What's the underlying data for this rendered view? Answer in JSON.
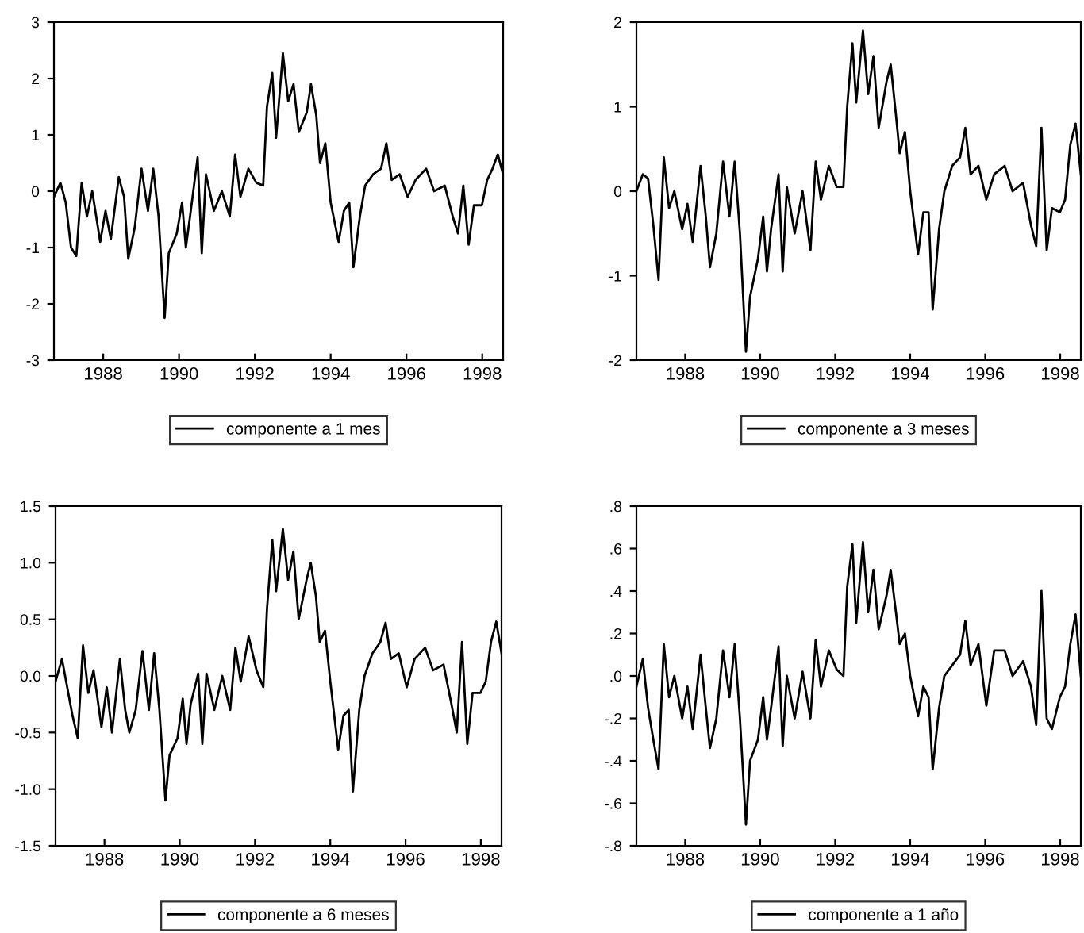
{
  "chart_data": [
    {
      "type": "line",
      "x": [
        1986.7,
        1986.87,
        1987.01,
        1987.15,
        1987.29,
        1987.43,
        1987.57,
        1987.71,
        1987.92,
        1988.06,
        1988.2,
        1988.41,
        1988.55,
        1988.66,
        1988.83,
        1989.01,
        1989.18,
        1989.32,
        1989.46,
        1989.62,
        1989.73,
        1989.94,
        1990.08,
        1990.18,
        1990.29,
        1990.49,
        1990.6,
        1990.71,
        1990.92,
        1991.13,
        1991.34,
        1991.48,
        1991.62,
        1991.83,
        1992.04,
        1992.22,
        1992.32,
        1992.46,
        1992.56,
        1992.74,
        1992.88,
        1993.02,
        1993.16,
        1993.37,
        1993.48,
        1993.62,
        1993.72,
        1993.86,
        1994.0,
        1994.21,
        1994.35,
        1994.49,
        1994.6,
        1994.77,
        1994.91,
        1995.12,
        1995.33,
        1995.47,
        1995.61,
        1995.82,
        1996.03,
        1996.24,
        1996.52,
        1996.73,
        1997.01,
        1997.22,
        1997.36,
        1997.5,
        1997.64,
        1997.78,
        1997.99,
        1998.13,
        1998.27,
        1998.41,
        1998.55
      ],
      "series": [
        {
          "name": "componente a 1 mes",
          "color": "#000000",
          "values": [
            -0.1,
            0.15,
            -0.2,
            -1.0,
            -1.15,
            0.15,
            -0.45,
            0.0,
            -0.9,
            -0.35,
            -0.85,
            0.25,
            -0.1,
            -1.2,
            -0.65,
            0.4,
            -0.35,
            0.4,
            -0.45,
            -2.25,
            -1.1,
            -0.75,
            -0.2,
            -1.0,
            -0.45,
            0.6,
            -1.1,
            0.3,
            -0.35,
            0.0,
            -0.45,
            0.65,
            -0.1,
            0.4,
            0.15,
            0.1,
            1.5,
            2.1,
            0.95,
            2.45,
            1.6,
            1.9,
            1.05,
            1.4,
            1.9,
            1.35,
            0.5,
            0.85,
            -0.2,
            -0.9,
            -0.35,
            -0.2,
            -1.35,
            -0.45,
            0.1,
            0.3,
            0.4,
            0.85,
            0.2,
            0.3,
            -0.1,
            0.2,
            0.4,
            0.0,
            0.1,
            -0.45,
            -0.75,
            0.1,
            -0.95,
            -0.25,
            -0.25,
            0.2,
            0.4,
            0.65,
            0.3
          ]
        }
      ],
      "xlim": [
        1986.7,
        1998.55
      ],
      "xticks": [
        1988,
        1990,
        1992,
        1994,
        1996,
        1998
      ],
      "ylim": [
        -3,
        3
      ],
      "yticks": [
        -3,
        -2,
        -1,
        0,
        1,
        2,
        3
      ],
      "grid": false,
      "legend": "bottom"
    },
    {
      "type": "line",
      "x": [
        1986.7,
        1986.87,
        1987.01,
        1987.15,
        1987.29,
        1987.43,
        1987.57,
        1987.71,
        1987.92,
        1988.06,
        1988.2,
        1988.41,
        1988.55,
        1988.66,
        1988.83,
        1989.01,
        1989.18,
        1989.32,
        1989.46,
        1989.62,
        1989.73,
        1989.94,
        1990.08,
        1990.18,
        1990.29,
        1990.49,
        1990.6,
        1990.71,
        1990.92,
        1991.13,
        1991.34,
        1991.48,
        1991.62,
        1991.83,
        1992.04,
        1992.22,
        1992.32,
        1992.46,
        1992.56,
        1992.74,
        1992.88,
        1993.02,
        1993.16,
        1993.37,
        1993.48,
        1993.62,
        1993.72,
        1993.86,
        1994.0,
        1994.21,
        1994.35,
        1994.49,
        1994.6,
        1994.77,
        1994.91,
        1995.12,
        1995.33,
        1995.47,
        1995.61,
        1995.82,
        1996.03,
        1996.24,
        1996.52,
        1996.73,
        1997.01,
        1997.22,
        1997.36,
        1997.5,
        1997.64,
        1997.78,
        1997.99,
        1998.13,
        1998.27,
        1998.41,
        1998.55
      ],
      "series": [
        {
          "name": "componente a 3 meses",
          "color": "#000000",
          "values": [
            0.0,
            0.2,
            0.15,
            -0.4,
            -1.05,
            0.4,
            -0.2,
            0.0,
            -0.45,
            -0.15,
            -0.6,
            0.3,
            -0.3,
            -0.9,
            -0.5,
            0.35,
            -0.3,
            0.35,
            -0.5,
            -1.9,
            -1.25,
            -0.8,
            -0.3,
            -0.95,
            -0.45,
            0.2,
            -0.95,
            0.05,
            -0.5,
            0.0,
            -0.7,
            0.35,
            -0.1,
            0.3,
            0.05,
            0.05,
            1.0,
            1.75,
            1.05,
            1.9,
            1.15,
            1.6,
            0.75,
            1.3,
            1.5,
            0.9,
            0.45,
            0.7,
            0.0,
            -0.75,
            -0.25,
            -0.25,
            -1.4,
            -0.45,
            0.0,
            0.3,
            0.4,
            0.75,
            0.2,
            0.3,
            -0.1,
            0.2,
            0.3,
            0.0,
            0.1,
            -0.4,
            -0.65,
            0.75,
            -0.7,
            -0.2,
            -0.25,
            -0.1,
            0.55,
            0.8,
            0.2
          ]
        }
      ],
      "xlim": [
        1986.7,
        1998.55
      ],
      "xticks": [
        1988,
        1990,
        1992,
        1994,
        1996,
        1998
      ],
      "ylim": [
        -2,
        2
      ],
      "yticks": [
        -2,
        -1,
        0,
        1,
        2
      ],
      "grid": false,
      "legend": "bottom"
    },
    {
      "type": "line",
      "x": [
        1986.7,
        1986.87,
        1987.01,
        1987.15,
        1987.29,
        1987.43,
        1987.57,
        1987.71,
        1987.92,
        1988.06,
        1988.2,
        1988.41,
        1988.55,
        1988.66,
        1988.83,
        1989.01,
        1989.18,
        1989.32,
        1989.46,
        1989.62,
        1989.73,
        1989.94,
        1990.08,
        1990.18,
        1990.29,
        1990.49,
        1990.6,
        1990.71,
        1990.92,
        1991.13,
        1991.34,
        1991.48,
        1991.62,
        1991.83,
        1992.04,
        1992.22,
        1992.32,
        1992.46,
        1992.56,
        1992.74,
        1992.88,
        1993.02,
        1993.16,
        1993.37,
        1993.48,
        1993.62,
        1993.72,
        1993.86,
        1994.0,
        1994.21,
        1994.35,
        1994.49,
        1994.6,
        1994.77,
        1994.91,
        1995.12,
        1995.33,
        1995.47,
        1995.61,
        1995.82,
        1996.03,
        1996.24,
        1996.52,
        1996.73,
        1997.01,
        1997.22,
        1997.36,
        1997.5,
        1997.64,
        1997.78,
        1997.99,
        1998.13,
        1998.27,
        1998.41,
        1998.55
      ],
      "series": [
        {
          "name": "componente a 6 meses",
          "color": "#000000",
          "values": [
            -0.05,
            0.15,
            -0.1,
            -0.35,
            -0.55,
            0.27,
            -0.15,
            0.05,
            -0.45,
            -0.1,
            -0.5,
            0.15,
            -0.3,
            -0.5,
            -0.3,
            0.22,
            -0.3,
            0.2,
            -0.3,
            -1.1,
            -0.7,
            -0.55,
            -0.2,
            -0.6,
            -0.25,
            0.02,
            -0.6,
            0.02,
            -0.3,
            0.0,
            -0.3,
            0.25,
            -0.05,
            0.35,
            0.05,
            -0.1,
            0.6,
            1.2,
            0.75,
            1.3,
            0.85,
            1.1,
            0.5,
            0.85,
            1.0,
            0.7,
            0.3,
            0.4,
            -0.05,
            -0.65,
            -0.35,
            -0.3,
            -1.02,
            -0.3,
            0.0,
            0.2,
            0.3,
            0.47,
            0.15,
            0.2,
            -0.1,
            0.15,
            0.25,
            0.05,
            0.1,
            -0.25,
            -0.5,
            0.3,
            -0.6,
            -0.15,
            -0.15,
            -0.05,
            0.3,
            0.48,
            0.2
          ]
        }
      ],
      "xlim": [
        1986.7,
        1998.55
      ],
      "xticks": [
        1988,
        1990,
        1992,
        1994,
        1996,
        1998
      ],
      "ylim": [
        -1.5,
        1.5
      ],
      "yticks": [
        {
          "value": -1.5,
          "label": "-1.5"
        },
        {
          "value": -1.0,
          "label": "-1.0"
        },
        {
          "value": -0.5,
          "label": "-0.5"
        },
        {
          "value": 0.0,
          "label": "0.0"
        },
        {
          "value": 0.5,
          "label": "0.5"
        },
        {
          "value": 1.0,
          "label": "1.0"
        },
        {
          "value": 1.5,
          "label": "1.5"
        }
      ],
      "grid": false,
      "legend": "bottom"
    },
    {
      "type": "line",
      "x": [
        1986.7,
        1986.87,
        1987.01,
        1987.15,
        1987.29,
        1987.43,
        1987.57,
        1987.71,
        1987.92,
        1988.06,
        1988.2,
        1988.41,
        1988.55,
        1988.66,
        1988.83,
        1989.01,
        1989.18,
        1989.32,
        1989.46,
        1989.62,
        1989.73,
        1989.94,
        1990.08,
        1990.18,
        1990.29,
        1990.49,
        1990.6,
        1990.71,
        1990.92,
        1991.13,
        1991.34,
        1991.48,
        1991.62,
        1991.83,
        1992.04,
        1992.22,
        1992.32,
        1992.46,
        1992.56,
        1992.74,
        1992.88,
        1993.02,
        1993.16,
        1993.37,
        1993.48,
        1993.62,
        1993.72,
        1993.86,
        1994.0,
        1994.21,
        1994.35,
        1994.49,
        1994.6,
        1994.77,
        1994.91,
        1995.12,
        1995.33,
        1995.47,
        1995.61,
        1995.82,
        1996.03,
        1996.24,
        1996.52,
        1996.73,
        1997.01,
        1997.22,
        1997.36,
        1997.5,
        1997.64,
        1997.78,
        1997.99,
        1998.13,
        1998.27,
        1998.41,
        1998.55
      ],
      "series": [
        {
          "name": "componente a 1 año",
          "color": "#000000",
          "values": [
            -0.05,
            0.08,
            -0.15,
            -0.3,
            -0.44,
            0.15,
            -0.1,
            0.0,
            -0.2,
            -0.05,
            -0.25,
            0.1,
            -0.15,
            -0.34,
            -0.2,
            0.12,
            -0.1,
            0.15,
            -0.2,
            -0.7,
            -0.4,
            -0.3,
            -0.1,
            -0.3,
            -0.15,
            0.14,
            -0.33,
            0.0,
            -0.2,
            0.02,
            -0.2,
            0.17,
            -0.05,
            0.12,
            0.03,
            0.0,
            0.42,
            0.62,
            0.25,
            0.63,
            0.3,
            0.5,
            0.22,
            0.38,
            0.5,
            0.3,
            0.15,
            0.2,
            0.0,
            -0.19,
            -0.05,
            -0.1,
            -0.44,
            -0.15,
            0.0,
            0.05,
            0.1,
            0.26,
            0.05,
            0.15,
            -0.14,
            0.12,
            0.12,
            0.0,
            0.07,
            -0.05,
            -0.23,
            0.4,
            -0.2,
            -0.25,
            -0.1,
            -0.05,
            0.15,
            0.29,
            0.0
          ]
        }
      ],
      "xlim": [
        1986.7,
        1998.55
      ],
      "xticks": [
        1988,
        1990,
        1992,
        1994,
        1996,
        1998
      ],
      "ylim": [
        -0.8,
        0.8
      ],
      "yticks": [
        {
          "value": -0.8,
          "label": "-.8"
        },
        {
          "value": -0.6,
          "label": "-.6"
        },
        {
          "value": -0.4,
          "label": "-.4"
        },
        {
          "value": -0.2,
          "label": "-.2"
        },
        {
          "value": 0.0,
          "label": ".0"
        },
        {
          "value": 0.2,
          "label": ".2"
        },
        {
          "value": 0.4,
          "label": ".4"
        },
        {
          "value": 0.6,
          "label": ".6"
        },
        {
          "value": 0.8,
          "label": ".8"
        }
      ],
      "grid": false,
      "legend": "bottom"
    }
  ]
}
